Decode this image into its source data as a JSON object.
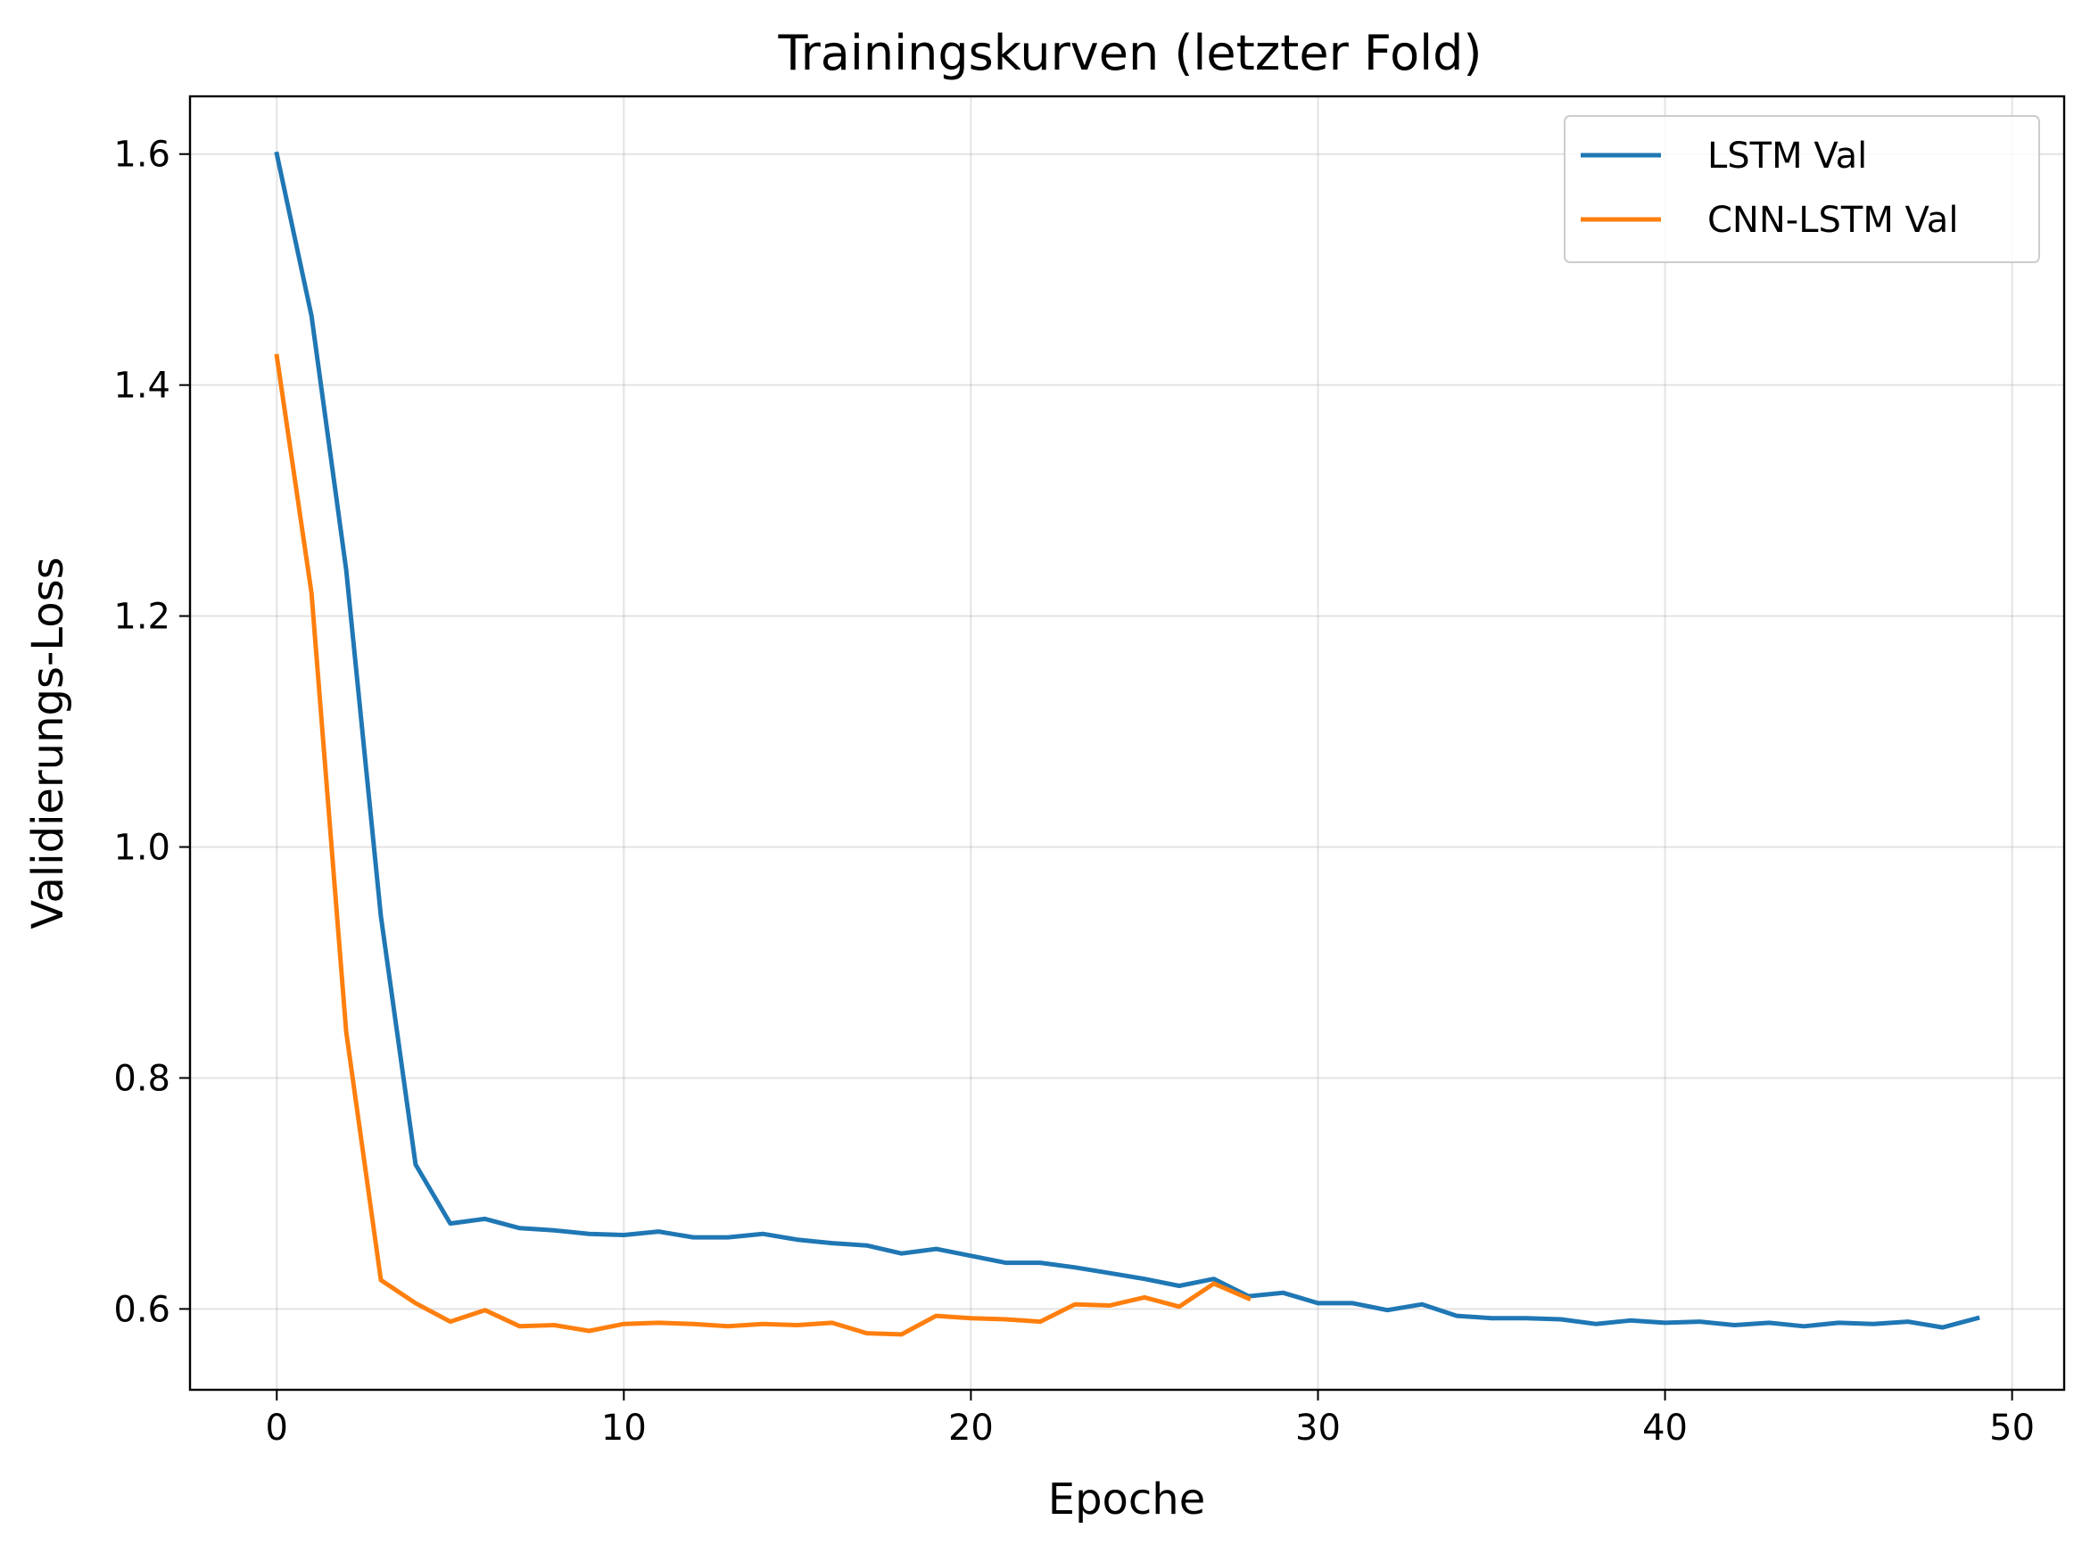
{
  "chart_data": {
    "type": "line",
    "title": "Trainingskurven (letzter Fold)",
    "xlabel": "Epoche",
    "ylabel": "Validierungs-Loss",
    "xlim": [
      -2.5,
      51.5
    ],
    "ylim": [
      0.53,
      1.65
    ],
    "xticks": [
      0,
      10,
      20,
      30,
      40,
      50
    ],
    "yticks": [
      0.6,
      0.8,
      1.0,
      1.2,
      1.4,
      1.6
    ],
    "xtick_labels": [
      "0",
      "10",
      "20",
      "30",
      "40",
      "50"
    ],
    "ytick_labels": [
      "0.6",
      "0.8",
      "1.0",
      "1.2",
      "1.4",
      "1.6"
    ],
    "grid": true,
    "legend": "top-right",
    "series": [
      {
        "name": "LSTM Val",
        "color": "#1f77b4",
        "x": [
          0,
          1,
          2,
          3,
          4,
          5,
          6,
          7,
          8,
          9,
          10,
          11,
          12,
          13,
          14,
          15,
          16,
          17,
          18,
          19,
          20,
          21,
          22,
          23,
          24,
          25,
          26,
          27,
          28,
          29,
          30,
          31,
          32,
          33,
          34,
          35,
          36,
          37,
          38,
          39,
          40,
          41,
          42,
          43,
          44,
          45,
          46,
          47,
          48,
          49
        ],
        "y": [
          1.6,
          1.46,
          1.24,
          0.94,
          0.725,
          0.674,
          0.678,
          0.67,
          0.668,
          0.665,
          0.664,
          0.667,
          0.662,
          0.662,
          0.665,
          0.66,
          0.657,
          0.655,
          0.648,
          0.652,
          0.646,
          0.64,
          0.64,
          0.636,
          0.631,
          0.626,
          0.62,
          0.626,
          0.611,
          0.614,
          0.605,
          0.605,
          0.599,
          0.604,
          0.594,
          0.592,
          0.592,
          0.591,
          0.587,
          0.59,
          0.588,
          0.589,
          0.586,
          0.588,
          0.585,
          0.588,
          0.587,
          0.589,
          0.584,
          0.592
        ]
      },
      {
        "name": "CNN-LSTM Val",
        "color": "#ff7f0e",
        "x": [
          0,
          1,
          2,
          3,
          4,
          5,
          6,
          7,
          8,
          9,
          10,
          11,
          12,
          13,
          14,
          15,
          16,
          17,
          18,
          19,
          20,
          21,
          22,
          23,
          24,
          25,
          26,
          27,
          28
        ],
        "y": [
          1.425,
          1.22,
          0.84,
          0.625,
          0.605,
          0.589,
          0.599,
          0.585,
          0.586,
          0.581,
          0.587,
          0.588,
          0.587,
          0.585,
          0.587,
          0.586,
          0.588,
          0.579,
          0.578,
          0.594,
          0.592,
          0.591,
          0.589,
          0.604,
          0.603,
          0.61,
          0.602,
          0.622,
          0.609
        ]
      }
    ]
  }
}
